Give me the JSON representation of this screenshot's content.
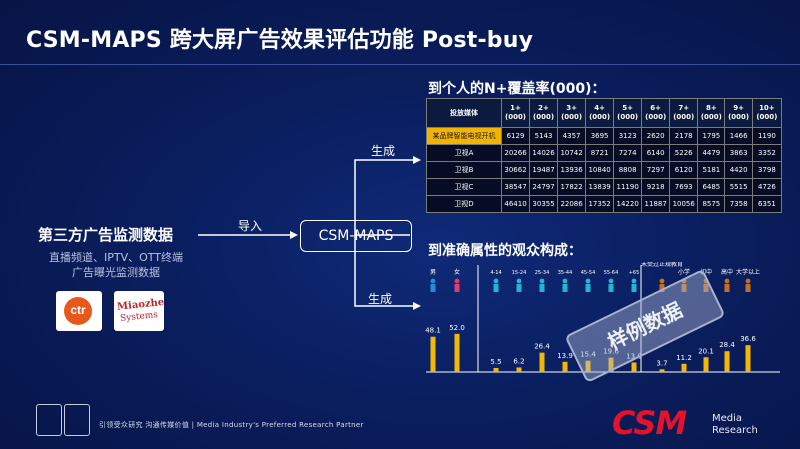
{
  "title": "CSM-MAPS 跨大屏广告效果评估功能 Post-buy",
  "left": {
    "title": "第三方广告监测数据",
    "sub_line1": "直播频道、IPTV、OTT终端",
    "sub_line2": "广告曝光监测数据",
    "logo_ctr": "ctr",
    "logo_mz_line1": "Miaozhen",
    "logo_mz_line2": "Systems"
  },
  "flow": {
    "import_label": "导入",
    "center_box": "CSM-MAPS",
    "gen_top": "生成",
    "gen_bottom": "生成"
  },
  "reach": {
    "title": "到个人的N+覆盖率(000)：",
    "columns": [
      "投放媒体",
      "1+ (000)",
      "2+ (000)",
      "3+ (000)",
      "4+ (000)",
      "5+ (000)",
      "6+ (000)",
      "7+ (000)",
      "8+ (000)",
      "9+ (000)",
      "10+ (000)"
    ],
    "rows": [
      {
        "media": "某品牌智能电视开机",
        "values": [
          "6129",
          "5143",
          "4357",
          "3695",
          "3123",
          "2620",
          "2178",
          "1795",
          "1466",
          "1190"
        ]
      },
      {
        "media": "卫视A",
        "values": [
          "20266",
          "14026",
          "10742",
          "8721",
          "7274",
          "6140",
          "5226",
          "4479",
          "3863",
          "3352"
        ]
      },
      {
        "media": "卫视B",
        "values": [
          "30662",
          "19487",
          "13936",
          "10840",
          "8808",
          "7297",
          "6120",
          "5181",
          "4420",
          "3798"
        ]
      },
      {
        "media": "卫视C",
        "values": [
          "38547",
          "24797",
          "17822",
          "13839",
          "11190",
          "9218",
          "7693",
          "6485",
          "5515",
          "4726"
        ]
      },
      {
        "media": "卫视D",
        "values": [
          "46410",
          "30355",
          "22086",
          "17352",
          "14220",
          "11887",
          "10056",
          "8575",
          "7358",
          "6351"
        ]
      }
    ]
  },
  "audience": {
    "title": "到准确属性的观众构成：",
    "watermark": "样例数据",
    "gender_labels": [
      "男",
      "女"
    ],
    "age_labels": [
      "4-14",
      "15-24",
      "25-34",
      "35-44",
      "45-54",
      "55-64",
      "+65"
    ],
    "edu_labels": [
      "未受过正规教育",
      "小学",
      "初中",
      "高中",
      "大学以上"
    ]
  },
  "chart_data": {
    "type": "bar",
    "title": "到准确属性的观众构成：",
    "groups": [
      {
        "name": "gender",
        "categories": [
          "男",
          "女"
        ],
        "values": [
          48.1,
          52.0
        ]
      },
      {
        "name": "age",
        "categories": [
          "4-14",
          "15-24",
          "25-34",
          "35-44",
          "45-54",
          "55-64",
          "+65"
        ],
        "values": [
          5.5,
          6.2,
          26.4,
          13.9,
          15.4,
          19.6,
          13.0
        ]
      },
      {
        "name": "education",
        "categories": [
          "未受过正规教育",
          "小学",
          "初中",
          "高中",
          "大学以上"
        ],
        "values": [
          3.7,
          11.2,
          20.1,
          28.4,
          36.6
        ]
      }
    ],
    "bar_color": "#f5b800",
    "ylim": [
      0,
      60
    ],
    "grid": false
  },
  "footer": {
    "slogan": "引领受众研究 沟通传媒价值 | Media Industry's Preferred Research Partner",
    "logo": "CSM",
    "logo_sub1": "Media",
    "logo_sub2": "Research"
  },
  "colors": {
    "background": "#0a1e5e",
    "accent": "#f5b800",
    "highlight_cell": "#f2b400",
    "brand_red": "#e4122b"
  }
}
